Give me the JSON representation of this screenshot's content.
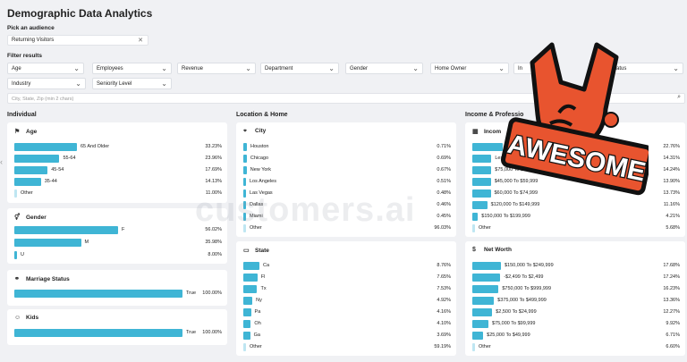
{
  "page": {
    "title": "Demographic Data Analytics"
  },
  "audience": {
    "label": "Pick an audience",
    "value": "Returning Visitors"
  },
  "filters": {
    "label": "Filter results",
    "row1": [
      "Age",
      "Employees",
      "Revenue",
      "Department",
      "Gender",
      "Home Owner",
      "In",
      "ge Status"
    ],
    "row2": [
      "Industry",
      "Seniority Level"
    ],
    "city_placeholder": "City, State, Zip (min 2 chars)"
  },
  "columns": [
    "Individual",
    "Location & Home",
    "Income & Professio"
  ],
  "watermark": "customers.ai",
  "sticker_text": "AWESOME",
  "cards": {
    "age": {
      "title": "Age",
      "rows": [
        {
          "label": "65 And Older",
          "pct": "33.23%",
          "v": 33.23
        },
        {
          "label": "55-64",
          "pct": "23.96%",
          "v": 23.96
        },
        {
          "label": "45-54",
          "pct": "17.69%",
          "v": 17.69
        },
        {
          "label": "35-44",
          "pct": "14.13%",
          "v": 14.13
        },
        {
          "label": "Other",
          "pct": "11.00%",
          "v": 0,
          "other": true
        }
      ]
    },
    "gender": {
      "title": "Gender",
      "rows": [
        {
          "label": "F",
          "pct": "56.02%",
          "v": 56.02
        },
        {
          "label": "M",
          "pct": "35.98%",
          "v": 35.98
        },
        {
          "label": "U",
          "pct": "8.00%",
          "v": 0
        }
      ]
    },
    "marriage": {
      "title": "Marriage Status",
      "rows": [
        {
          "label": "True",
          "pct": "100.00%",
          "v": 100
        }
      ]
    },
    "kids": {
      "title": "Kids",
      "rows": [
        {
          "label": "True",
          "pct": "100.00%",
          "v": 100
        }
      ]
    },
    "city": {
      "title": "City",
      "rows": [
        {
          "label": "Houston",
          "pct": "0.71%",
          "v": 0.71
        },
        {
          "label": "Chicago",
          "pct": "0.69%",
          "v": 0.69
        },
        {
          "label": "New York",
          "pct": "0.67%",
          "v": 0.67
        },
        {
          "label": "Los Angeles",
          "pct": "0.51%",
          "v": 0.51
        },
        {
          "label": "Las Vegas",
          "pct": "0.48%",
          "v": 0.48
        },
        {
          "label": "Dallas",
          "pct": "0.46%",
          "v": 0.46
        },
        {
          "label": "Miami",
          "pct": "0.45%",
          "v": 0.45
        },
        {
          "label": "Other",
          "pct": "96.03%",
          "v": 0,
          "other": true
        }
      ]
    },
    "state": {
      "title": "State",
      "rows": [
        {
          "label": "Ca",
          "pct": "8.76%",
          "v": 8.76
        },
        {
          "label": "Fl",
          "pct": "7.65%",
          "v": 7.65
        },
        {
          "label": "Tx",
          "pct": "7.53%",
          "v": 7.53
        },
        {
          "label": "Ny",
          "pct": "4.92%",
          "v": 4.92
        },
        {
          "label": "Pa",
          "pct": "4.16%",
          "v": 4.16
        },
        {
          "label": "Oh",
          "pct": "4.10%",
          "v": 4.1
        },
        {
          "label": "Ga",
          "pct": "3.69%",
          "v": 3.69
        },
        {
          "label": "Other",
          "pct": "59.19%",
          "v": 0,
          "other": true
        }
      ]
    },
    "income": {
      "title": "Incom",
      "rows": [
        {
          "label": "",
          "pct": "22.76%",
          "v": 22.76
        },
        {
          "label": "Less",
          "pct": "14.31%",
          "v": 14.31
        },
        {
          "label": "$75,000 To $89,999",
          "pct": "14.24%",
          "v": 14.24
        },
        {
          "label": "$45,000 To $59,999",
          "pct": "13.90%",
          "v": 13.9
        },
        {
          "label": "$60,000 To $74,999",
          "pct": "13.73%",
          "v": 13.73
        },
        {
          "label": "$120,000 To $149,999",
          "pct": "11.16%",
          "v": 11.16
        },
        {
          "label": "$150,000 To $199,999",
          "pct": "4.21%",
          "v": 4.21
        },
        {
          "label": "Other",
          "pct": "5.68%",
          "v": 0,
          "other": true
        }
      ]
    },
    "networth": {
      "title": "Net Worth",
      "rows": [
        {
          "label": "$150,000 To $249,999",
          "pct": "17.68%",
          "v": 17.68
        },
        {
          "label": "-$2,499 To $2,499",
          "pct": "17.24%",
          "v": 17.24
        },
        {
          "label": "$750,000 To $999,999",
          "pct": "16.23%",
          "v": 16.23
        },
        {
          "label": "$375,000 To $499,999",
          "pct": "13.36%",
          "v": 13.36
        },
        {
          "label": "$2,500 To $24,999",
          "pct": "12.27%",
          "v": 12.27
        },
        {
          "label": "$75,000 To $99,999",
          "pct": "9.92%",
          "v": 9.92
        },
        {
          "label": "$25,000 To $49,999",
          "pct": "6.71%",
          "v": 6.71
        },
        {
          "label": "Other",
          "pct": "6.60%",
          "v": 0,
          "other": true
        }
      ]
    }
  },
  "colors": {
    "bar": "#3fb5d5",
    "accent": "#e8542f"
  }
}
